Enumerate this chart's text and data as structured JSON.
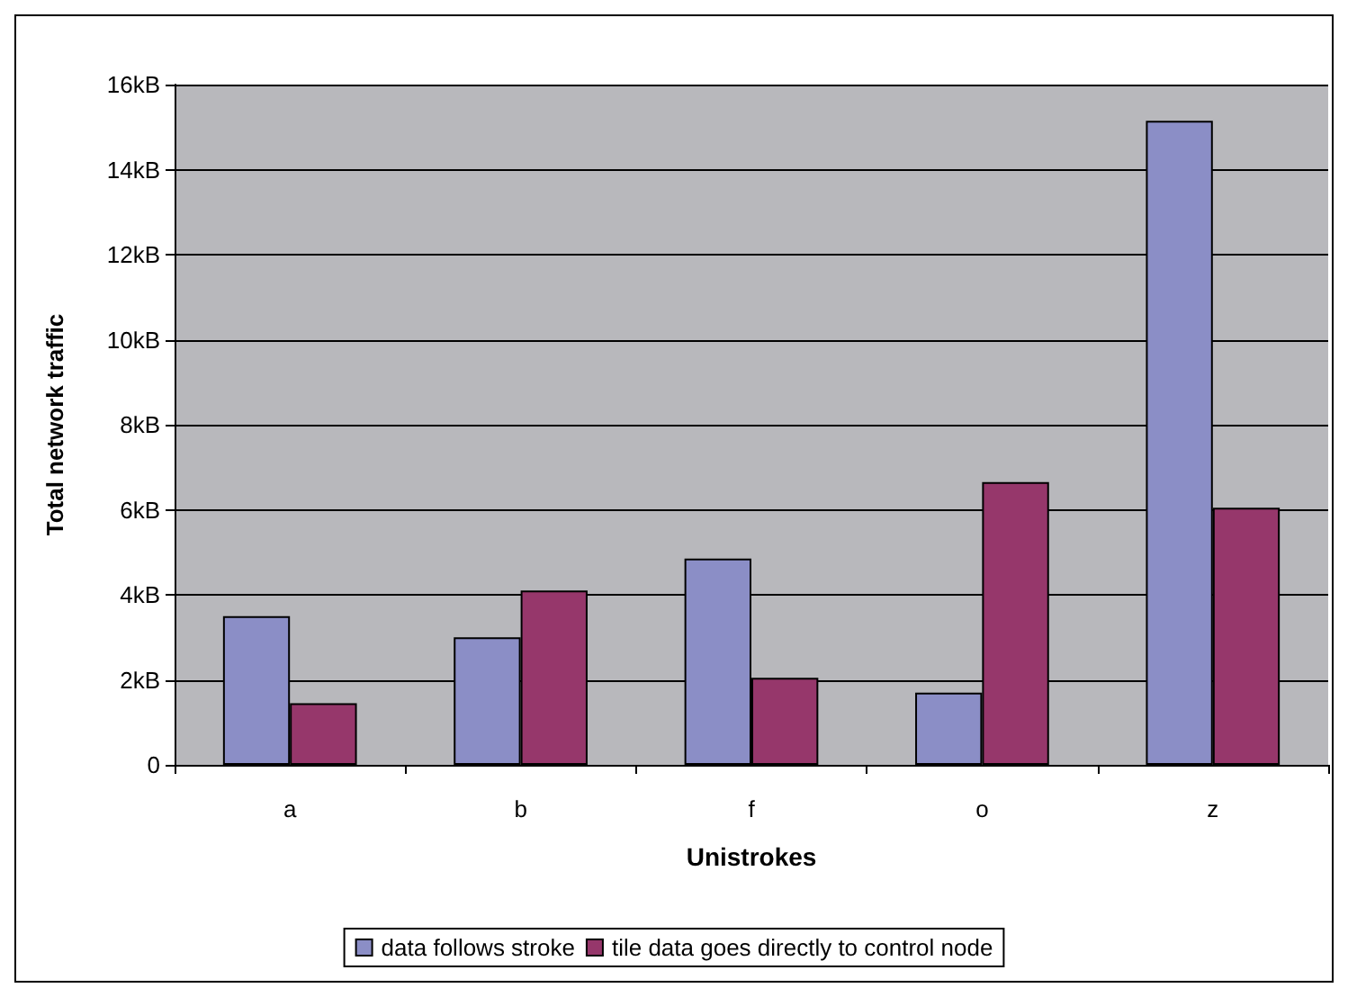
{
  "chart_data": {
    "type": "bar",
    "xlabel": "Unistrokes",
    "ylabel": "Total network traffic",
    "categories": [
      "a",
      "b",
      "f",
      "o",
      "z"
    ],
    "series": [
      {
        "name": "data follows stroke",
        "color": "#8b8ec6",
        "values": [
          3.5,
          3.0,
          4.85,
          1.7,
          15.15
        ]
      },
      {
        "name": "tile data goes directly to control node",
        "color": "#96376b",
        "values": [
          1.45,
          4.1,
          2.05,
          6.65,
          6.05
        ]
      }
    ],
    "ylim": [
      0,
      16
    ],
    "yticks": [
      0,
      {
        "value": 2,
        "label": "2kB"
      },
      {
        "value": 4,
        "label": "4kB"
      },
      {
        "value": 6,
        "label": "6kB"
      },
      {
        "value": 8,
        "label": "8kB"
      },
      {
        "value": 10,
        "label": "10kB"
      },
      {
        "value": 12,
        "label": "12kB"
      },
      {
        "value": 14,
        "label": "14kB"
      },
      {
        "value": 16,
        "label": "16kB"
      }
    ],
    "grid": "y",
    "legend": "bottom"
  }
}
